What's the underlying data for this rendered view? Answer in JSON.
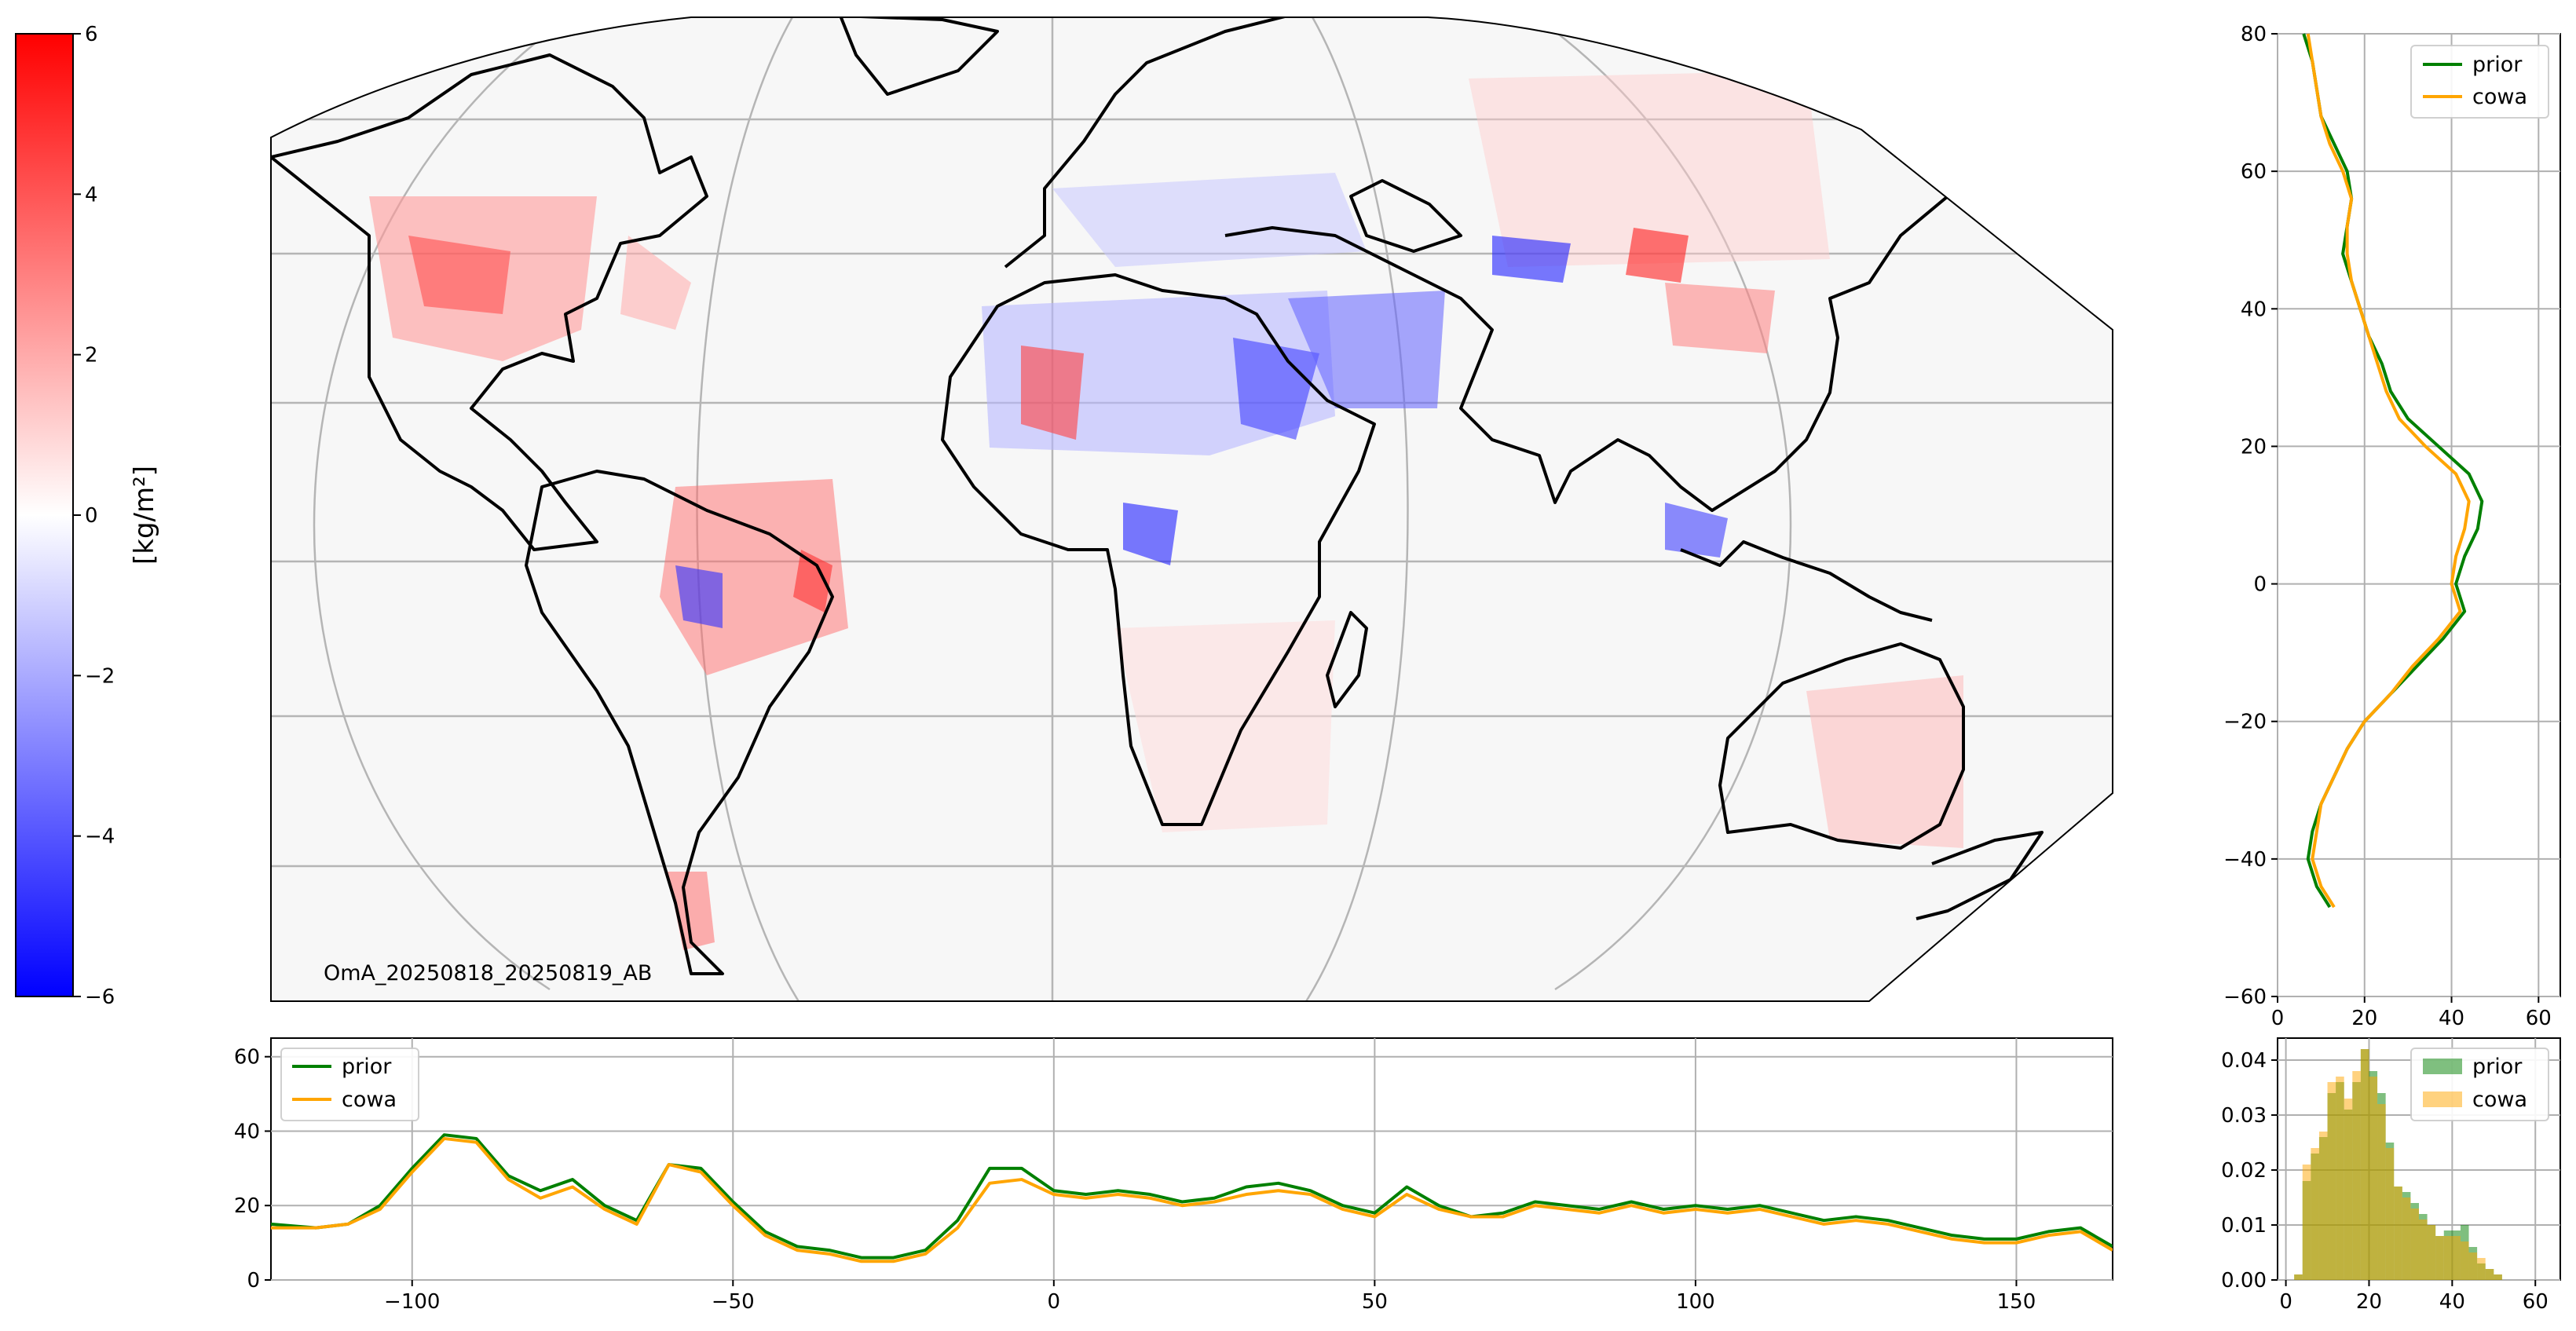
{
  "colorbar": {
    "label": "[kg/m²]",
    "ticks": [
      "6",
      "4",
      "2",
      "0",
      "−2",
      "−4",
      "−6"
    ],
    "range": [
      -6,
      6
    ],
    "colors": {
      "high": "#ff0000",
      "mid": "#ffffff",
      "low": "#0000ff"
    }
  },
  "map": {
    "annotation": "OmA_20250818_20250819_AB",
    "background": "#f7f7f7",
    "coastline_color": "#000000",
    "grid": true
  },
  "chart_data": [
    {
      "type": "line",
      "title": "",
      "xlabel": "",
      "ylabel": "",
      "orientation": "vertical-profile",
      "xlim": [
        0,
        65
      ],
      "ylim": [
        -60,
        80
      ],
      "xticks": [
        "0",
        "20",
        "40",
        "60"
      ],
      "yticks": [
        "80",
        "60",
        "40",
        "20",
        "0",
        "−20",
        "−40",
        "−60"
      ],
      "grid": true,
      "legend": "top-right",
      "lat": [
        80,
        76,
        72,
        68,
        64,
        60,
        56,
        52,
        48,
        44,
        40,
        36,
        32,
        28,
        24,
        20,
        16,
        12,
        8,
        4,
        0,
        -4,
        -8,
        -12,
        -16,
        -20,
        -24,
        -28,
        -32,
        -36,
        -40,
        -44,
        -47
      ],
      "series": [
        {
          "name": "prior",
          "color": "#008000",
          "values": [
            6,
            8,
            9,
            10,
            13,
            16,
            17,
            16,
            15,
            17,
            19,
            21,
            24,
            26,
            30,
            37,
            44,
            47,
            46,
            43,
            41,
            43,
            38,
            32,
            26,
            20,
            16,
            13,
            10,
            8,
            7,
            9,
            12
          ]
        },
        {
          "name": "cowa",
          "color": "#ffa500",
          "values": [
            7,
            8,
            9,
            10,
            12,
            15,
            17,
            16,
            16,
            17,
            19,
            21,
            23,
            25,
            28,
            34,
            41,
            44,
            43,
            41,
            40,
            42,
            37,
            31,
            26,
            20,
            16,
            13,
            10,
            9,
            8,
            10,
            13
          ]
        }
      ]
    },
    {
      "type": "line",
      "title": "",
      "xlabel": "",
      "ylabel": "",
      "xlim": [
        -122,
        165
      ],
      "ylim": [
        0,
        65
      ],
      "xticks": [
        "−100",
        "−50",
        "0",
        "50",
        "100",
        "150"
      ],
      "yticks": [
        "0",
        "20",
        "40",
        "60"
      ],
      "grid": true,
      "legend": "top-left",
      "x": [
        -122,
        -115,
        -110,
        -105,
        -100,
        -95,
        -90,
        -85,
        -80,
        -75,
        -70,
        -65,
        -60,
        -55,
        -50,
        -45,
        -40,
        -35,
        -30,
        -25,
        -20,
        -15,
        -10,
        -5,
        0,
        5,
        10,
        15,
        20,
        25,
        30,
        35,
        40,
        45,
        50,
        55,
        60,
        65,
        70,
        75,
        80,
        85,
        90,
        95,
        100,
        105,
        110,
        115,
        120,
        125,
        130,
        135,
        140,
        145,
        150,
        155,
        160,
        165
      ],
      "series": [
        {
          "name": "prior",
          "color": "#008000",
          "values": [
            15,
            14,
            15,
            20,
            30,
            39,
            38,
            28,
            24,
            27,
            20,
            16,
            31,
            30,
            21,
            13,
            9,
            8,
            6,
            6,
            8,
            16,
            30,
            30,
            24,
            23,
            24,
            23,
            21,
            22,
            25,
            26,
            24,
            20,
            18,
            25,
            20,
            17,
            18,
            21,
            20,
            19,
            21,
            19,
            20,
            19,
            20,
            18,
            16,
            17,
            16,
            14,
            12,
            11,
            11,
            13,
            14,
            9
          ]
        },
        {
          "name": "cowa",
          "color": "#ffa500",
          "values": [
            14,
            14,
            15,
            19,
            29,
            38,
            37,
            27,
            22,
            25,
            19,
            15,
            31,
            29,
            20,
            12,
            8,
            7,
            5,
            5,
            7,
            14,
            26,
            27,
            23,
            22,
            23,
            22,
            20,
            21,
            23,
            24,
            23,
            19,
            17,
            23,
            19,
            17,
            17,
            20,
            19,
            18,
            20,
            18,
            19,
            18,
            19,
            17,
            15,
            16,
            15,
            13,
            11,
            10,
            10,
            12,
            13,
            8
          ]
        }
      ]
    },
    {
      "type": "bar",
      "title": "",
      "xlabel": "",
      "ylabel": "",
      "xlim": [
        -2,
        66
      ],
      "ylim": [
        0,
        0.044
      ],
      "xticks": [
        "0",
        "20",
        "40",
        "60"
      ],
      "yticks": [
        "0.00",
        "0.01",
        "0.02",
        "0.03",
        "0.04"
      ],
      "grid": true,
      "legend": "top-right",
      "bin_edges": [
        2,
        4,
        6,
        8,
        10,
        12,
        14,
        16,
        18,
        20,
        22,
        24,
        26,
        28,
        30,
        32,
        34,
        36,
        38,
        40,
        42,
        44,
        46,
        48,
        50,
        52,
        54,
        56,
        58
      ],
      "series": [
        {
          "name": "prior",
          "color": "#008000",
          "opacity": 0.5,
          "values": [
            0.001,
            0.018,
            0.023,
            0.026,
            0.034,
            0.036,
            0.031,
            0.036,
            0.042,
            0.038,
            0.034,
            0.025,
            0.017,
            0.016,
            0.014,
            0.012,
            0.01,
            0.008,
            0.009,
            0.009,
            0.01,
            0.006,
            0.003,
            0.002,
            0.001,
            0.0,
            0.0,
            0.0
          ]
        },
        {
          "name": "cowa",
          "color": "#ffa500",
          "opacity": 0.5,
          "values": [
            0.001,
            0.021,
            0.024,
            0.027,
            0.036,
            0.037,
            0.033,
            0.038,
            0.042,
            0.037,
            0.032,
            0.024,
            0.017,
            0.015,
            0.013,
            0.011,
            0.01,
            0.008,
            0.008,
            0.008,
            0.007,
            0.005,
            0.004,
            0.002,
            0.001,
            0.0,
            0.0,
            0.0
          ]
        }
      ]
    }
  ]
}
